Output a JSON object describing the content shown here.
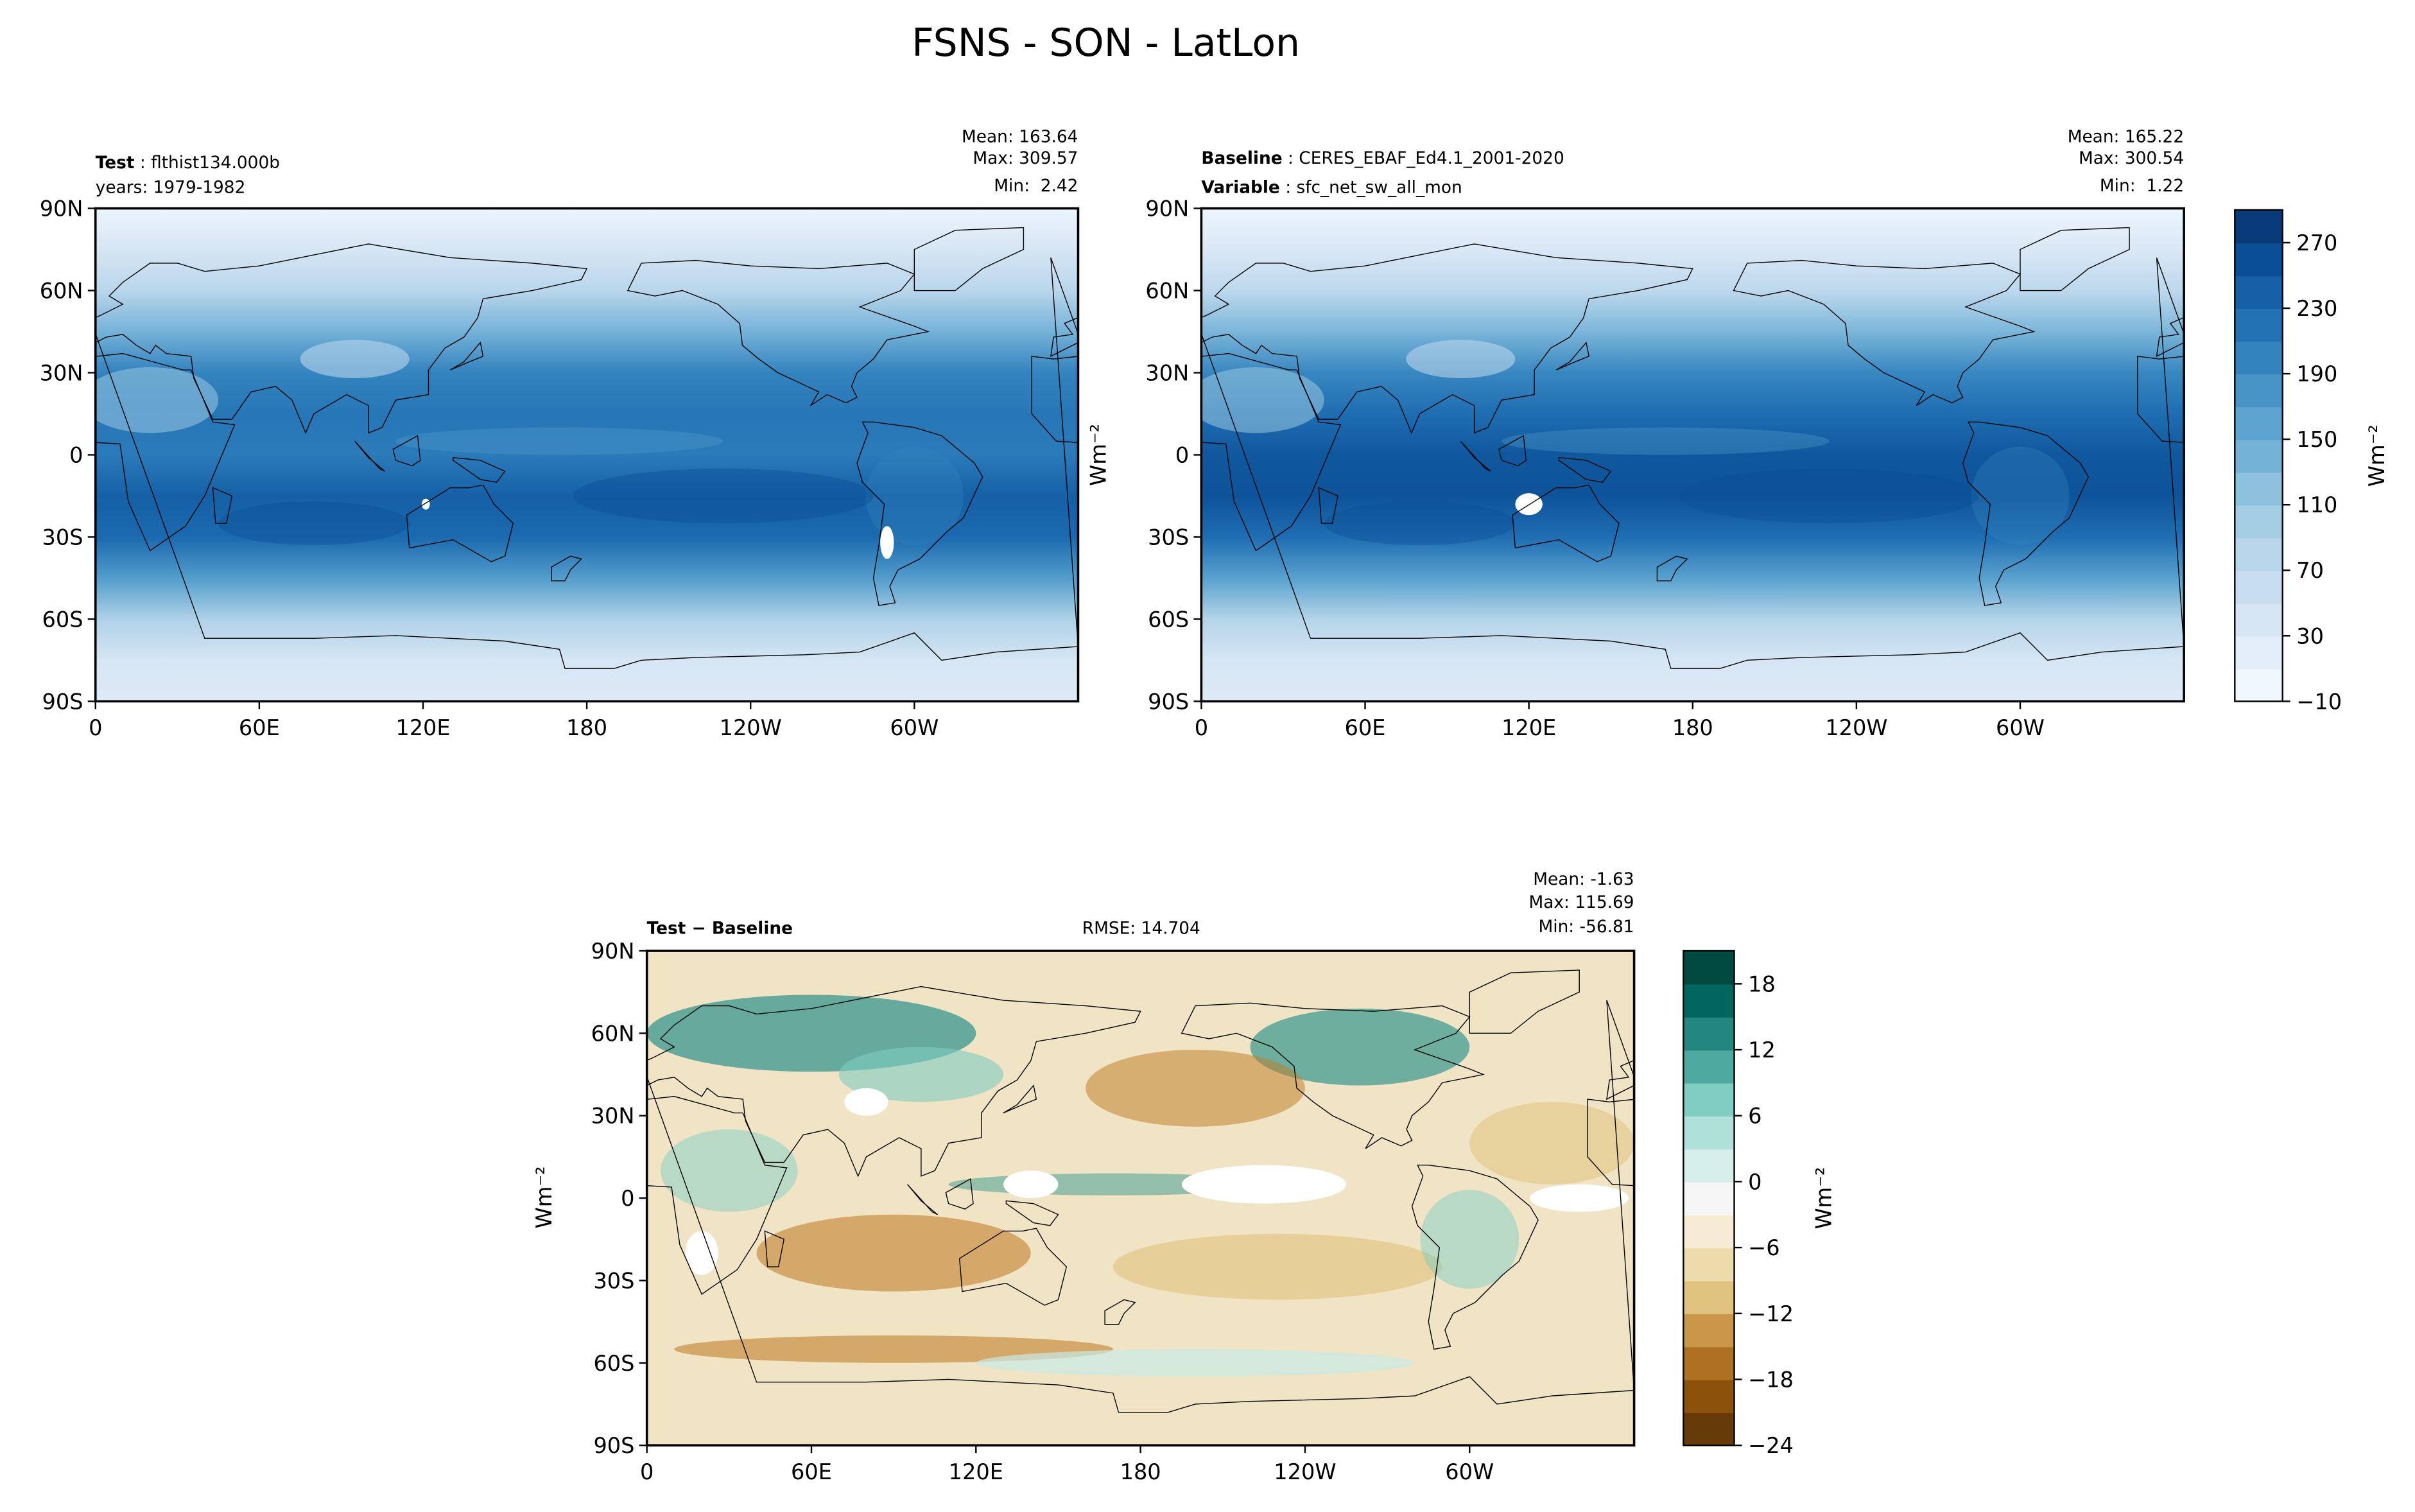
{
  "figure": {
    "title": "FSNS - SON - LatLon"
  },
  "panels": {
    "test": {
      "label_bold": "Test",
      "label_value": "flthist134.000b",
      "years": "years: 1979-1982",
      "stats": [
        "Mean: 163.64",
        "Max: 309.57",
        "Min:  2.42"
      ]
    },
    "baseline": {
      "label_bold": "Baseline",
      "label_value": "CERES_EBAF_Ed4.1_2001-2020",
      "var_bold": "Variable",
      "var_value": "sfc_net_sw_all_mon",
      "stats": [
        "Mean: 165.22",
        "Max: 300.54",
        "Min:  1.22"
      ],
      "ylabel": "Wm⁻²"
    },
    "diff": {
      "label": "Test − Baseline",
      "rmse": "RMSE: 14.704",
      "stats": [
        "Mean: -1.63",
        "Max: 115.69",
        "Min: -56.81"
      ],
      "ylabel": "Wm⁻²"
    }
  },
  "colors": {
    "blues": [
      "#f7fbff",
      "#e3eef9",
      "#d0e2f2",
      "#b9d6eb",
      "#9ac8e0",
      "#75b2d8",
      "#529dcc",
      "#3383be",
      "#1b69af",
      "#0a4f96",
      "#08306b"
    ],
    "diff": [
      "#543005",
      "#8c510a",
      "#bf812d",
      "#dfc27d",
      "#f6e8c3",
      "#f5f5f5",
      "#c7eae5",
      "#80cdc1",
      "#35978f",
      "#01665e",
      "#003c30"
    ],
    "land_fill": "#6aa0cf",
    "axes": "#000000"
  },
  "chart_data": [
    {
      "type": "heatmap",
      "name": "Test",
      "x_ticklabels": [
        "0",
        "60E",
        "120E",
        "180",
        "120W",
        "60W"
      ],
      "y_ticklabels": [
        "90N",
        "60N",
        "30N",
        "0",
        "30S",
        "60S",
        "90S"
      ],
      "xlim": [
        0,
        360
      ],
      "ylim": [
        -90,
        90
      ],
      "stats": {
        "mean": 163.64,
        "max": 309.57,
        "min": 2.42
      },
      "zonal_mean_profile": {
        "lat": [
          90,
          75,
          60,
          45,
          30,
          15,
          0,
          -15,
          -30,
          -45,
          -60,
          -75,
          -90
        ],
        "value": [
          5,
          40,
          80,
          140,
          200,
          215,
          210,
          240,
          230,
          170,
          90,
          40,
          30
        ]
      }
    },
    {
      "type": "heatmap",
      "name": "Baseline",
      "x_ticklabels": [
        "0",
        "60E",
        "120E",
        "180",
        "120W",
        "60W"
      ],
      "y_ticklabels": [
        "90N",
        "60N",
        "30N",
        "0",
        "30S",
        "60S",
        "90S"
      ],
      "xlim": [
        0,
        360
      ],
      "ylim": [
        -90,
        90
      ],
      "stats": {
        "mean": 165.22,
        "max": 300.54,
        "min": 1.22
      },
      "zonal_mean_profile": {
        "lat": [
          90,
          75,
          60,
          45,
          30,
          15,
          0,
          -15,
          -30,
          -45,
          -60,
          -75,
          -90
        ],
        "value": [
          5,
          35,
          75,
          135,
          195,
          225,
          250,
          255,
          225,
          165,
          85,
          40,
          30
        ]
      },
      "colorbar": {
        "ticks": [
          -10,
          30,
          70,
          110,
          150,
          190,
          230,
          270
        ],
        "tick_labels": [
          "−10",
          "30",
          "70",
          "110",
          "150",
          "190",
          "230",
          "270"
        ],
        "range": [
          -10,
          290
        ],
        "label": "Wm⁻²"
      }
    },
    {
      "type": "heatmap",
      "name": "Test - Baseline",
      "x_ticklabels": [
        "0",
        "60E",
        "120E",
        "180",
        "120W",
        "60W"
      ],
      "y_ticklabels": [
        "90N",
        "60N",
        "30N",
        "0",
        "30S",
        "60S",
        "90S"
      ],
      "xlim": [
        0,
        360
      ],
      "ylim": [
        -90,
        90
      ],
      "stats": {
        "mean": -1.63,
        "max": 115.69,
        "min": -56.81,
        "rmse": 14.704
      },
      "colorbar": {
        "ticks": [
          -24,
          -18,
          -12,
          -6,
          0,
          6,
          12,
          18
        ],
        "tick_labels": [
          "−24",
          "−18",
          "−12",
          "−6",
          "0",
          "6",
          "12",
          "18"
        ],
        "range": [
          -24,
          21
        ],
        "label": "Wm⁻²"
      }
    }
  ]
}
